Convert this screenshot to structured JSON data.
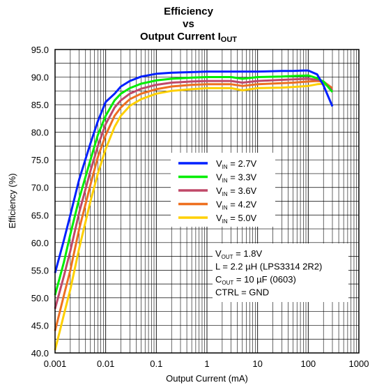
{
  "chart_data": {
    "type": "line",
    "title_lines": [
      "Efficiency",
      "vs",
      "Output Current I"
    ],
    "title_sub": "OUT",
    "xlabel": "Output Current (mA)",
    "ylabel": "Efficiency (%)",
    "xscale": "log",
    "xlim": [
      0.001,
      1000
    ],
    "ylim": [
      40,
      95
    ],
    "x_tick_labels": [
      "0.001",
      "0.01",
      "0.1",
      "1",
      "10",
      "100",
      "1000"
    ],
    "y_tick_labels": [
      "40.0",
      "45.0",
      "50.0",
      "55.0",
      "60.0",
      "65.0",
      "70.0",
      "75.0",
      "80.0",
      "85.0",
      "90.0",
      "95.0"
    ],
    "grid": true,
    "legend_position": "center-right",
    "series": [
      {
        "name": "V",
        "sub": "IN",
        "suffix": " = 2.7V",
        "color": "#0020ff",
        "x": [
          0.001,
          0.0015,
          0.002,
          0.003,
          0.005,
          0.007,
          0.01,
          0.015,
          0.02,
          0.03,
          0.05,
          0.1,
          0.2,
          0.5,
          1,
          3,
          10,
          30,
          50,
          80,
          100,
          150,
          200,
          300
        ],
        "y": [
          54.5,
          60.5,
          65.0,
          71.5,
          78.0,
          82.0,
          85.5,
          87.0,
          88.3,
          89.3,
          90.1,
          90.6,
          90.8,
          90.9,
          91.0,
          91.0,
          91.0,
          91.1,
          91.1,
          91.2,
          91.2,
          90.5,
          88.5,
          84.7
        ]
      },
      {
        "name": "V",
        "sub": "IN",
        "suffix": " = 3.3V",
        "color": "#00ee00",
        "x": [
          0.001,
          0.0015,
          0.002,
          0.003,
          0.005,
          0.007,
          0.01,
          0.015,
          0.02,
          0.03,
          0.05,
          0.1,
          0.2,
          0.5,
          1,
          3,
          5,
          10,
          30,
          50,
          100,
          150,
          200,
          300
        ],
        "y": [
          50.5,
          56.5,
          61.5,
          68.0,
          75.0,
          79.5,
          83.0,
          85.8,
          87.0,
          88.0,
          88.8,
          89.4,
          89.7,
          89.9,
          90.0,
          90.0,
          89.7,
          90.0,
          90.1,
          90.2,
          90.3,
          89.8,
          89.2,
          87.3
        ]
      },
      {
        "name": "V",
        "sub": "IN",
        "suffix": " = 3.6V",
        "color": "#c04868",
        "x": [
          0.001,
          0.0015,
          0.002,
          0.003,
          0.005,
          0.007,
          0.01,
          0.015,
          0.02,
          0.03,
          0.05,
          0.1,
          0.2,
          0.5,
          1,
          3,
          5,
          10,
          30,
          50,
          100,
          150,
          200,
          300
        ],
        "y": [
          48.0,
          54.0,
          58.5,
          65.5,
          73.0,
          77.5,
          81.5,
          84.5,
          85.8,
          87.0,
          87.9,
          88.6,
          89.0,
          89.2,
          89.3,
          89.3,
          89.0,
          89.3,
          89.5,
          89.6,
          89.7,
          89.5,
          89.2,
          87.6
        ]
      },
      {
        "name": "V",
        "sub": "IN",
        "suffix": " = 4.2V",
        "color": "#ee7020",
        "x": [
          0.001,
          0.0015,
          0.002,
          0.003,
          0.005,
          0.007,
          0.01,
          0.015,
          0.02,
          0.03,
          0.05,
          0.1,
          0.2,
          0.5,
          1,
          3,
          5,
          10,
          30,
          50,
          100,
          150,
          200,
          300
        ],
        "y": [
          44.0,
          50.5,
          55.0,
          62.5,
          70.5,
          75.5,
          79.5,
          83.0,
          84.5,
          86.0,
          87.0,
          87.8,
          88.3,
          88.6,
          88.7,
          88.7,
          88.4,
          88.7,
          88.9,
          89.0,
          89.2,
          89.3,
          89.2,
          88.0
        ]
      },
      {
        "name": "V",
        "sub": "IN",
        "suffix": " = 5.0V",
        "color": "#ffd000",
        "x": [
          0.001,
          0.0015,
          0.002,
          0.003,
          0.005,
          0.007,
          0.01,
          0.015,
          0.02,
          0.03,
          0.05,
          0.1,
          0.2,
          0.5,
          1,
          3,
          5,
          10,
          30,
          50,
          100,
          150,
          200,
          300
        ],
        "y": [
          40.5,
          47.0,
          51.5,
          59.0,
          67.5,
          72.5,
          77.0,
          81.0,
          83.0,
          84.8,
          86.0,
          87.0,
          87.5,
          87.8,
          88.0,
          88.0,
          87.6,
          88.0,
          88.1,
          88.2,
          88.4,
          88.7,
          88.8,
          88.0
        ]
      }
    ],
    "annotation_lines": [
      {
        "main": "V",
        "sub": "OUT",
        "rest": " = 1.8V"
      },
      {
        "main": "L = 2.2 µH (LPS3314 2R2)",
        "sub": "",
        "rest": ""
      },
      {
        "main": "C",
        "sub": "OUT",
        "rest": " = 10 µF (0603)"
      },
      {
        "main": "CTRL = GND",
        "sub": "",
        "rest": ""
      }
    ]
  }
}
